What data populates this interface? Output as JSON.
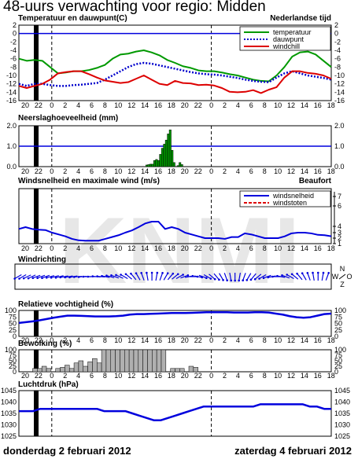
{
  "title": "48-uurs verwachting voor regio: Midden",
  "footer_left": "donderdag 2 februari 2012",
  "footer_right": "zaterdag 4 februari 2012",
  "watermark": "KNMI",
  "x_ticks": [
    "20",
    "22",
    "0",
    "2",
    "4",
    "6",
    "8",
    "10",
    "12",
    "14",
    "16",
    "18",
    "20",
    "22",
    "0",
    "2",
    "4",
    "6",
    "8",
    "10",
    "12",
    "14",
    "16",
    "18"
  ],
  "colors": {
    "temperature": "#009900",
    "dewpoint": "#0000cc",
    "windchill": "#dd0000",
    "line": "#0000dd",
    "bar_rain": "#009900",
    "bar_cloud": "#b0b0b0",
    "now": "#000000"
  },
  "chart_data": [
    {
      "type": "line",
      "title": "Temperatuur en dauwpunt(C)",
      "subtitle": "Nederlandse tijd",
      "ylim": [
        -16,
        2
      ],
      "yticks": [
        2,
        0,
        -2,
        -4,
        -6,
        -8,
        -10,
        -12,
        -14,
        -16
      ],
      "zero_line": 0,
      "legend": "top-right",
      "series": [
        {
          "name": "temperatuur",
          "key": "temperature",
          "style": "solid",
          "values": [
            -6,
            -6.5,
            -6.3,
            -6.5,
            -8,
            -9.5,
            -9.3,
            -9,
            -9,
            -8.7,
            -8.2,
            -7.5,
            -6,
            -5,
            -4.8,
            -4.3,
            -4,
            -4.5,
            -5.2,
            -6.3,
            -7,
            -7.8,
            -8.2,
            -8.8,
            -9,
            -9,
            -9.3,
            -9.7,
            -10,
            -10.5,
            -11,
            -11.3,
            -11.4,
            -10,
            -8,
            -5.5,
            -4.5,
            -4.3,
            -5,
            -6.5,
            -8
          ]
        },
        {
          "name": "dauwpunt",
          "key": "dewpoint",
          "style": "dotted",
          "values": [
            -12,
            -12.5,
            -12,
            -12,
            -12.3,
            -12.5,
            -12.5,
            -12.3,
            -12.2,
            -12,
            -11.8,
            -11,
            -10,
            -9,
            -8,
            -7.3,
            -7,
            -7.2,
            -7.6,
            -8,
            -8.4,
            -8.8,
            -9.2,
            -9.5,
            -9.7,
            -9.8,
            -10,
            -10.3,
            -10.6,
            -11,
            -11.3,
            -11.5,
            -11.6,
            -10.5,
            -9.5,
            -9,
            -9.5,
            -10,
            -10.3,
            -10.6,
            -11
          ]
        },
        {
          "name": "windchill",
          "key": "windchill",
          "style": "solid",
          "values": [
            -12.5,
            -13,
            -12.5,
            -12,
            -11,
            -9.5,
            -9.2,
            -9,
            -9,
            -9.7,
            -10.5,
            -11.2,
            -11.5,
            -11.8,
            -11.6,
            -10.8,
            -10,
            -11,
            -12,
            -12.3,
            -11.3,
            -11.8,
            -11.9,
            -12.3,
            -12.2,
            -12.4,
            -13,
            -13.9,
            -14,
            -13.9,
            -13.5,
            -14.2,
            -13.4,
            -12.8,
            -10.5,
            -9,
            -9,
            -9.4,
            -9.6,
            -10,
            -10.8
          ]
        }
      ]
    },
    {
      "type": "bar",
      "title": "Neerslaghoeveelheid (mm)",
      "ylim": [
        0,
        2
      ],
      "yticks": [
        "2.0",
        "1.0",
        "0.0"
      ],
      "ref_line": 1.0,
      "values": [
        0,
        0,
        0,
        0,
        0,
        0,
        0,
        0,
        0,
        0,
        0,
        0,
        0,
        0,
        0,
        0,
        0,
        0,
        0,
        0,
        0,
        0,
        0,
        0,
        0,
        0,
        0,
        0,
        0,
        0,
        0,
        0,
        0,
        0,
        0,
        0,
        0,
        0,
        0,
        0,
        0,
        0,
        0,
        0,
        0,
        0,
        0,
        0,
        0,
        0,
        0,
        0,
        0,
        0,
        0,
        0,
        0,
        0,
        0,
        0,
        0,
        0,
        0,
        0,
        0,
        0.08,
        0.1,
        0.12,
        0.12,
        0.3,
        0.35,
        0.3,
        0.6,
        0.9,
        1.1,
        1.3,
        1.6,
        1.8,
        0.8,
        0.2,
        0,
        0.05,
        0.2,
        0.1,
        0,
        0,
        0,
        0,
        0,
        0,
        0,
        0,
        0,
        0,
        0,
        0,
        0,
        0,
        0,
        0,
        0,
        0,
        0,
        0,
        0,
        0,
        0,
        0,
        0,
        0,
        0,
        0,
        0,
        0,
        0,
        0,
        0,
        0,
        0,
        0,
        0,
        0,
        0,
        0,
        0,
        0,
        0,
        0,
        0,
        0,
        0,
        0,
        0,
        0,
        0,
        0,
        0,
        0,
        0,
        0,
        0,
        0,
        0,
        0,
        0,
        0,
        0,
        0,
        0,
        0,
        0,
        0,
        0,
        0,
        0,
        0,
        0,
        0,
        0,
        0
      ]
    },
    {
      "type": "line",
      "title": "Windsnelheid en maximale wind (m/s)",
      "subtitle": "Beaufort",
      "ylim": [
        0,
        15
      ],
      "right_ticks": [
        "7",
        "6",
        "4",
        "3",
        "2",
        "1"
      ],
      "legend": "top-right",
      "series": [
        {
          "name": "windsnelheid",
          "key": "line",
          "style": "solid",
          "values": [
            4,
            4.5,
            4,
            3.8,
            3.7,
            3,
            2.5,
            2,
            1.3,
            0.9,
            0.8,
            0.8,
            0.8,
            1.3,
            1.8,
            2.3,
            3,
            3.6,
            4.5,
            5.5,
            6,
            6,
            4,
            4.5,
            4,
            3,
            2.5,
            2,
            1.5,
            1.5,
            1.5,
            1.3,
            1.8,
            1.8,
            2.8,
            2.5,
            2,
            1.5,
            1.5,
            1.5,
            2,
            2.8,
            3,
            3,
            2.8,
            2.4,
            2.3,
            2
          ]
        },
        {
          "name": "windstoten",
          "key": "windchill",
          "style": "dashed",
          "values": []
        }
      ]
    },
    {
      "type": "scatter",
      "title": "Windrichting",
      "note": "richting-pijlen",
      "compass": [
        "N",
        "W",
        "O",
        "Z"
      ],
      "directions": [
        240,
        240,
        245,
        245,
        250,
        250,
        250,
        255,
        255,
        255,
        260,
        260,
        260,
        265,
        265,
        270,
        270,
        275,
        275,
        280,
        285,
        290,
        295,
        300,
        310,
        320,
        330,
        340,
        350,
        0,
        10,
        20,
        30,
        40,
        50,
        60,
        70,
        80,
        90,
        100,
        110,
        120,
        130,
        140,
        150,
        160,
        170,
        180,
        190,
        200,
        210,
        220,
        230,
        240,
        250,
        260,
        270,
        280,
        290,
        300,
        310,
        320,
        330,
        340,
        350,
        0,
        10,
        20
      ]
    },
    {
      "type": "line",
      "title": "Relatieve vochtigheid (%)",
      "ylim": [
        0,
        100
      ],
      "yticks": [
        "100",
        "75",
        "50",
        "25",
        "0"
      ],
      "series": [
        {
          "name": "",
          "key": "line",
          "style": "solid",
          "values": [
            52,
            55,
            58,
            62,
            67,
            72,
            76,
            80,
            80,
            79,
            78,
            77,
            77,
            77,
            78,
            80,
            84,
            86,
            86,
            87,
            88,
            89,
            90,
            90,
            90,
            91,
            92,
            93,
            93,
            93,
            93,
            92,
            92,
            92,
            93,
            93,
            92,
            88,
            84,
            78,
            74,
            72,
            74,
            80,
            86,
            88
          ]
        }
      ]
    },
    {
      "type": "bar",
      "title": "Bewolking (%)",
      "ylim": [
        0,
        100
      ],
      "yticks": [
        "100",
        "75",
        "50",
        "25",
        "0"
      ],
      "values": [
        0,
        0,
        0,
        15,
        15,
        25,
        15,
        0,
        15,
        20,
        30,
        15,
        40,
        50,
        25,
        45,
        60,
        40,
        100,
        100,
        100,
        100,
        100,
        100,
        100,
        100,
        100,
        100,
        100,
        100,
        100,
        100,
        0,
        15,
        15,
        15,
        0,
        25,
        20,
        0,
        0,
        0,
        0,
        0,
        0,
        0,
        0,
        0,
        0,
        0,
        0,
        0,
        0,
        0,
        0,
        0,
        0,
        0,
        0,
        0,
        0,
        0,
        0,
        0,
        0,
        0,
        0,
        0
      ]
    },
    {
      "type": "line",
      "title": "Luchtdruk (hPa)",
      "ylim": [
        1025,
        1045
      ],
      "yticks": [
        "1045",
        "1040",
        "1035",
        "1030",
        "1025"
      ],
      "series": [
        {
          "name": "",
          "key": "line",
          "style": "solid",
          "values": [
            1036,
            1036,
            1036,
            1037,
            1037,
            1037,
            1037,
            1037,
            1037,
            1037,
            1037,
            1037,
            1036,
            1036,
            1036,
            1036,
            1035,
            1034,
            1033,
            1032,
            1032,
            1033,
            1034,
            1035,
            1036,
            1037,
            1038,
            1038,
            1038,
            1038,
            1038,
            1038,
            1038,
            1038,
            1039,
            1039,
            1039,
            1039,
            1039,
            1039,
            1039,
            1038,
            1038,
            1037,
            1037
          ]
        }
      ]
    }
  ]
}
